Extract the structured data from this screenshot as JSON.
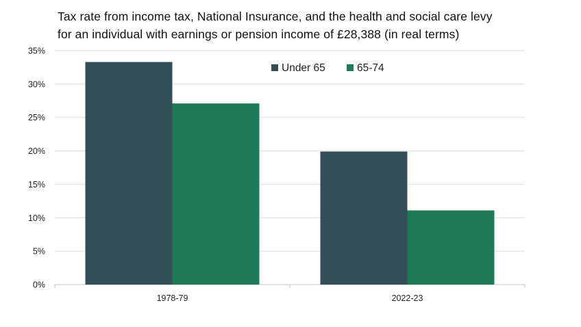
{
  "chart_data": {
    "type": "bar",
    "title_lines": [
      "Tax rate from income tax, National Insurance, and the health and social care levy",
      "for an individual with earnings or pension income of £28,388 (in real terms)"
    ],
    "categories": [
      "1978-79",
      "2022-23"
    ],
    "series": [
      {
        "name": "Under 65",
        "color": "#334f55",
        "values": [
          33.3,
          19.9
        ]
      },
      {
        "name": "65-74",
        "color": "#1f7a57",
        "values": [
          27.1,
          11.1
        ]
      }
    ],
    "ylim": [
      0,
      35
    ],
    "yticks": [
      "0%",
      "5%",
      "10%",
      "15%",
      "20%",
      "25%",
      "30%",
      "35%"
    ],
    "ytick_values": [
      0,
      5,
      10,
      15,
      20,
      25,
      30,
      35
    ],
    "grid": true,
    "legend_position": "top-center"
  }
}
